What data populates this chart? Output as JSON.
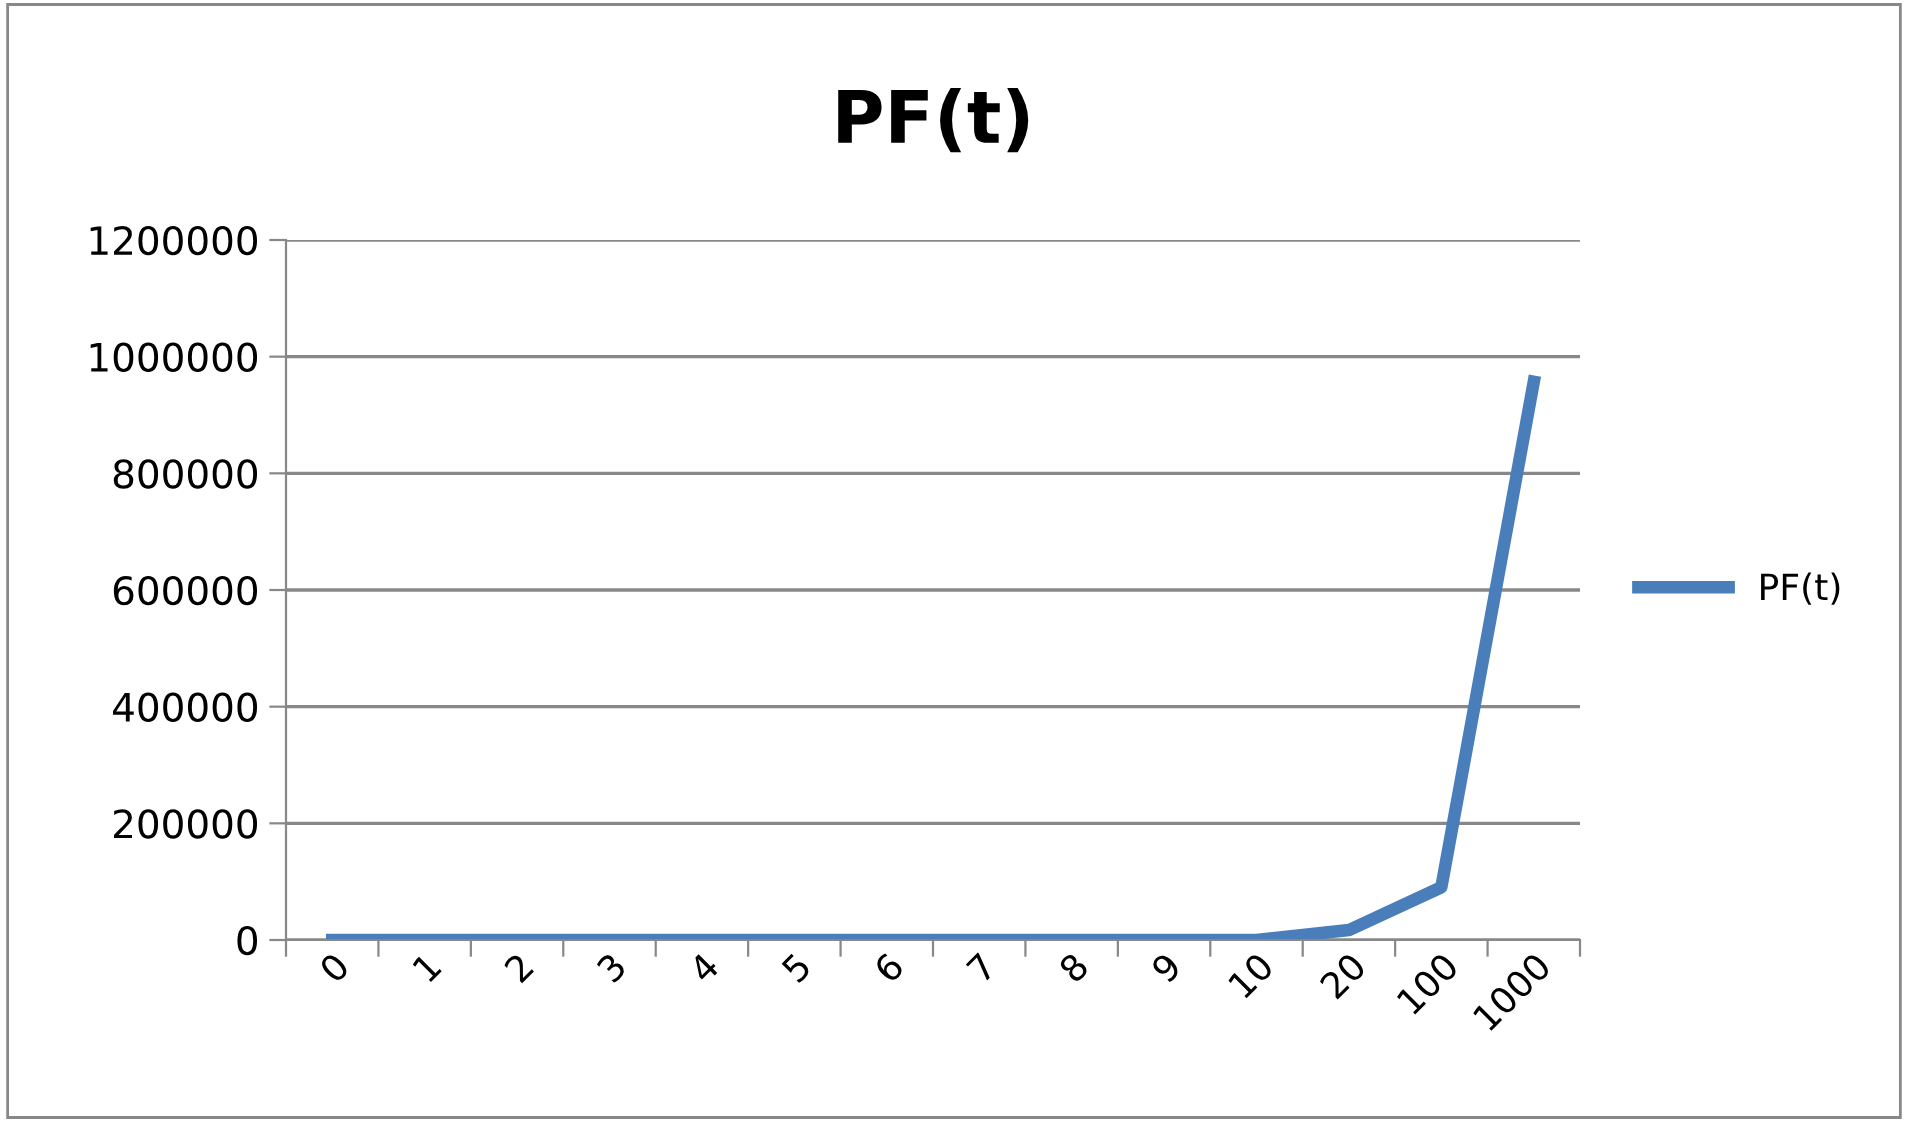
{
  "chart_data": {
    "type": "line",
    "title": "PF(t)",
    "categories": [
      "0",
      "1",
      "2",
      "3",
      "4",
      "5",
      "6",
      "7",
      "8",
      "9",
      "10",
      "20",
      "100",
      "1000"
    ],
    "series": [
      {
        "name": "PF(t)",
        "color": "#4a7ebb",
        "values": [
          0,
          0,
          0,
          0,
          0,
          0,
          0,
          0,
          0,
          0,
          0,
          17000,
          90500,
          957000
        ]
      }
    ],
    "ylim": [
      0,
      1200000
    ],
    "yticks": [
      0,
      200000,
      400000,
      600000,
      800000,
      1000000,
      1200000
    ],
    "grid": "y",
    "legend": "right",
    "marker": "none",
    "line_style": "solid"
  }
}
